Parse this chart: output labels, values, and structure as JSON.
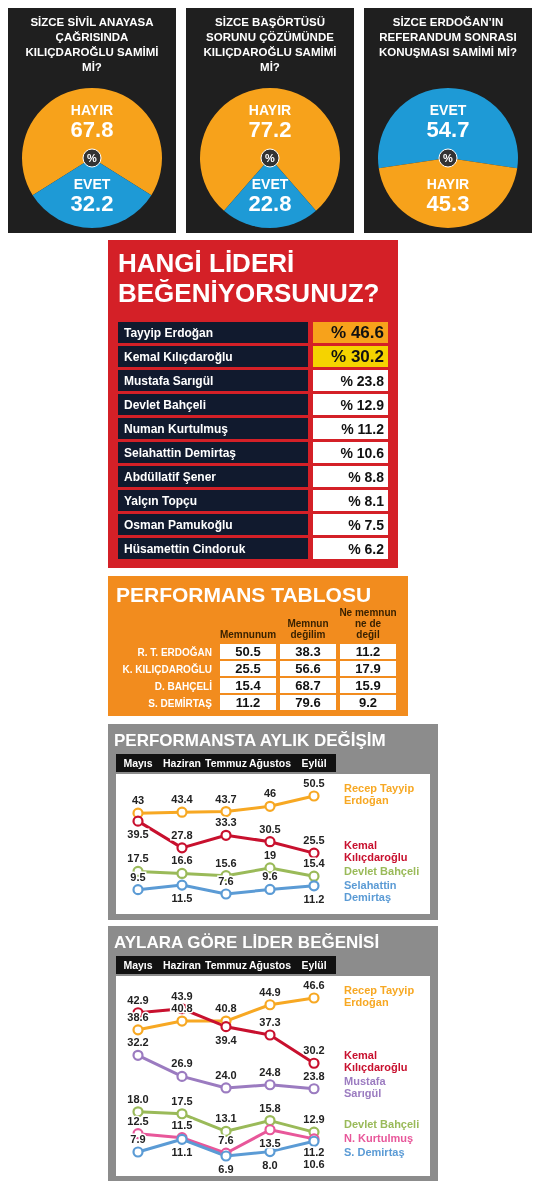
{
  "chart_data": [
    {
      "type": "pie",
      "title": "SİZCE SİVİL ANAYASA ÇAĞRISINDA KILIÇDAROĞLU SAMİMİ Mİ?",
      "categories": [
        "HAYIR",
        "EVET"
      ],
      "values": [
        67.8,
        32.2
      ],
      "colors": [
        "#f7a21b",
        "#1e9ad6"
      ],
      "data_labels": true,
      "annotations": [
        "%"
      ]
    },
    {
      "type": "pie",
      "title": "SİZCE BAŞÖRTÜSÜ SORUNU ÇÖZÜMÜNDE KILIÇDAROĞLU SAMİMİ Mİ?",
      "categories": [
        "HAYIR",
        "EVET"
      ],
      "values": [
        77.2,
        22.8
      ],
      "colors": [
        "#f7a21b",
        "#1e9ad6"
      ],
      "data_labels": true,
      "annotations": [
        "%"
      ]
    },
    {
      "type": "pie",
      "title": "SİZCE ERDOĞAN’IN REFERANDUM SONRASI KONUŞMASI SAMİMİ Mİ?",
      "categories": [
        "EVET",
        "HAYIR"
      ],
      "values": [
        54.7,
        45.3
      ],
      "colors": [
        "#1e9ad6",
        "#f7a21b"
      ],
      "data_labels": true,
      "annotations": [
        "%"
      ]
    },
    {
      "type": "other",
      "title": "HANGİ LİDERİ BEĞENİYORSUNUZ?",
      "categories": [
        "Tayyip Erdoğan",
        "Kemal Kılıçdaroğlu",
        "Mustafa Sarıgül",
        "Devlet Bahçeli",
        "Numan Kurtulmuş",
        "Selahattin Demirtaş",
        "Abdüllatif Şener",
        "Yalçın Topçu",
        "Osman Pamukoğlu",
        "Hüsamettin Cindoruk"
      ],
      "values": [
        46.6,
        30.2,
        23.8,
        12.9,
        11.2,
        10.6,
        8.8,
        8.1,
        7.5,
        6.2
      ],
      "value_labels": [
        "% 46.6",
        "% 30.2",
        "% 23.8",
        "% 12.9",
        "% 11.2",
        "% 10.6",
        "% 8.8",
        "% 8.1",
        "% 7.5",
        "% 6.2"
      ]
    },
    {
      "type": "other",
      "title": "PERFORMANS TABLOSU",
      "categories": [
        "R. T. ERDOĞAN",
        "K. KILIÇDAROĞLU",
        "D. BAHÇELİ",
        "S. DEMİRTAŞ"
      ],
      "data_labels": true,
      "series": [
        {
          "name": "Memnunum",
          "values": [
            50.5,
            25.5,
            15.4,
            11.2
          ]
        },
        {
          "name": "Memnun değilim",
          "values": [
            38.3,
            56.6,
            68.7,
            79.6
          ]
        },
        {
          "name": "Ne memnun ne de değil",
          "values": [
            11.2,
            17.9,
            15.9,
            9.2
          ]
        }
      ]
    },
    {
      "type": "line",
      "title": "PERFORMANSTA AYLIK DEĞİŞİM",
      "categories": [
        "Mayıs",
        "Haziran",
        "Temmuz",
        "Ağustos",
        "Eylül"
      ],
      "data_labels": true,
      "marker": "circle",
      "legend": "right",
      "series": [
        {
          "name": "Recep Tayyip Erdoğan",
          "color": "#f7a823",
          "values": [
            43,
            43.4,
            43.7,
            46,
            50.5
          ]
        },
        {
          "name": "Kemal Kılıçdaroğlu",
          "color": "#c8102e",
          "values": [
            39.5,
            27.8,
            33.3,
            30.5,
            25.5
          ]
        },
        {
          "name": "Devlet Bahçeli",
          "color": "#9aba59",
          "values": [
            17.5,
            16.6,
            15.6,
            19,
            15.4
          ]
        },
        {
          "name": "Selahattin Demirtaş",
          "color": "#5b9bd5",
          "values": [
            9.5,
            11.5,
            7.6,
            9.6,
            11.2
          ]
        }
      ]
    },
    {
      "type": "line",
      "title": "AYLARA GÖRE LİDER BEĞENİSİ",
      "categories": [
        "Mayıs",
        "Haziran",
        "Temmuz",
        "Ağustos",
        "Eylül"
      ],
      "data_labels": true,
      "marker": "circle",
      "legend": "right",
      "series": [
        {
          "name": "Recep Tayyip Erdoğan",
          "color": "#f7a823",
          "values": [
            38.6,
            40.8,
            40.8,
            44.9,
            46.6
          ],
          "value_labels": [
            "38.6",
            "40.8",
            "40.8",
            "44.9",
            "46.6"
          ]
        },
        {
          "name": "Kemal Kılıçdaroğlu",
          "color": "#c8102e",
          "values": [
            42.9,
            43.9,
            39.4,
            37.3,
            30.2
          ],
          "value_labels": [
            "42.9",
            "43.9",
            "39.4",
            "37.3",
            "30.2"
          ]
        },
        {
          "name": "Mustafa Sarıgül",
          "color": "#9b7bc0",
          "values": [
            32.2,
            26.9,
            24.0,
            24.8,
            23.8
          ],
          "value_labels": [
            "32.2",
            "26.9",
            "24.0",
            "24.8",
            "23.8"
          ]
        },
        {
          "name": "Devlet Bahçeli",
          "color": "#9aba59",
          "values": [
            18.0,
            17.5,
            13.1,
            15.8,
            12.9
          ],
          "value_labels": [
            "18.0",
            "17.5",
            "13.1",
            "15.8",
            "12.9"
          ]
        },
        {
          "name": "N. Kurtulmuş",
          "color": "#e8579a",
          "values": [
            12.5,
            11.5,
            7.6,
            13.5,
            11.2
          ],
          "value_labels": [
            "12.5",
            "11.5",
            "7.6",
            "13.5",
            "11.2"
          ]
        },
        {
          "name": "S. Demirtaş",
          "color": "#5b9bd5",
          "values": [
            7.9,
            11.1,
            6.9,
            8.0,
            10.6
          ],
          "value_labels": [
            "7.9",
            "11.1",
            "6.9",
            "8.0",
            "10.6"
          ]
        }
      ]
    }
  ]
}
